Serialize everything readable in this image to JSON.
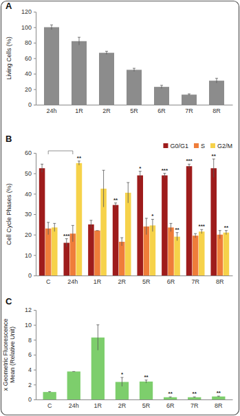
{
  "chart_data": [
    {
      "type": "bar",
      "title": "A",
      "y_label": "Living Cells (%)",
      "categories": [
        "24h",
        "1R",
        "2R",
        "5R",
        "6R",
        "7R",
        "8R"
      ],
      "values": [
        100,
        82,
        67,
        45,
        23,
        13,
        31
      ],
      "errors": [
        3,
        5,
        2,
        2,
        2,
        1,
        3
      ],
      "color": "#8c8c8c",
      "ylim": [
        0,
        120
      ],
      "yticks": [
        0,
        20,
        40,
        60,
        80,
        100,
        120
      ],
      "grid": false
    },
    {
      "type": "bar",
      "title": "B",
      "y_label": "Cell Cycle Phases (%)",
      "categories": [
        "C",
        "24h",
        "1R",
        "2R",
        "5R",
        "6R",
        "7R",
        "8R"
      ],
      "series": [
        {
          "name": "G0/G1",
          "color": "#9e1c1c",
          "values": [
            52.5,
            16,
            25,
            34.5,
            49,
            49,
            53.5,
            52.5
          ],
          "errors": [
            2,
            2,
            2,
            1,
            2,
            1,
            1,
            4.5
          ]
        },
        {
          "name": "S",
          "color": "#ef7d3a",
          "values": [
            23,
            20.5,
            22,
            16.5,
            24,
            23.5,
            19.5,
            20
          ],
          "errors": [
            3,
            4,
            0,
            2,
            4,
            2,
            1,
            2
          ]
        },
        {
          "name": "G2/M",
          "color": "#f6d24a",
          "values": [
            23.5,
            55,
            42.5,
            40.5,
            24.5,
            19,
            21.5,
            21
          ],
          "errors": [
            2,
            1,
            9,
            5,
            3,
            2,
            1,
            1
          ]
        }
      ],
      "annotations": [
        {
          "category": "24h",
          "series": "G0/G1",
          "text": "***"
        },
        {
          "category": "24h",
          "series": "G2/M",
          "text": "**"
        },
        {
          "category": "2R",
          "series": "G0/G1",
          "text": "**"
        },
        {
          "category": "5R",
          "series": "G0/G1",
          "text": "*"
        },
        {
          "category": "5R",
          "series": "G2/M",
          "text": "*"
        },
        {
          "category": "6R",
          "series": "G0/G1",
          "text": "***"
        },
        {
          "category": "6R",
          "series": "G2/M",
          "text": "**"
        },
        {
          "category": "7R",
          "series": "G0/G1",
          "text": "***"
        },
        {
          "category": "7R",
          "series": "G2/M",
          "text": "***"
        },
        {
          "category": "8R",
          "series": "G0/G1",
          "text": "**"
        },
        {
          "category": "8R",
          "series": "G2/M",
          "text": "**"
        }
      ],
      "legend": "top-right",
      "ylim": [
        0,
        60
      ],
      "yticks": [
        0,
        10,
        20,
        30,
        40,
        50,
        60
      ],
      "grid": false
    },
    {
      "type": "bar",
      "title": "C",
      "y_label": [
        "x Geometric Fluorescence",
        "Mean (Relative Unit)"
      ],
      "categories": [
        "C",
        "24h",
        "1R",
        "2R",
        "5R",
        "6R",
        "7R",
        "8R"
      ],
      "values": [
        1,
        3.75,
        8.3,
        2.35,
        2.4,
        0.3,
        0.3,
        0.4
      ],
      "errors": [
        0.05,
        0,
        1.7,
        0.6,
        0.2,
        0.05,
        0.05,
        0.05
      ],
      "color": "#7dce6c",
      "annotations": [
        {
          "category": "2R",
          "text": "*"
        },
        {
          "category": "5R",
          "text": "**"
        },
        {
          "category": "6R",
          "text": "**"
        },
        {
          "category": "7R",
          "text": "**"
        },
        {
          "category": "8R",
          "text": "**"
        }
      ],
      "ylim": [
        0,
        12
      ],
      "yticks": [
        0,
        2,
        4,
        6,
        8,
        10,
        12
      ],
      "grid": false
    }
  ]
}
